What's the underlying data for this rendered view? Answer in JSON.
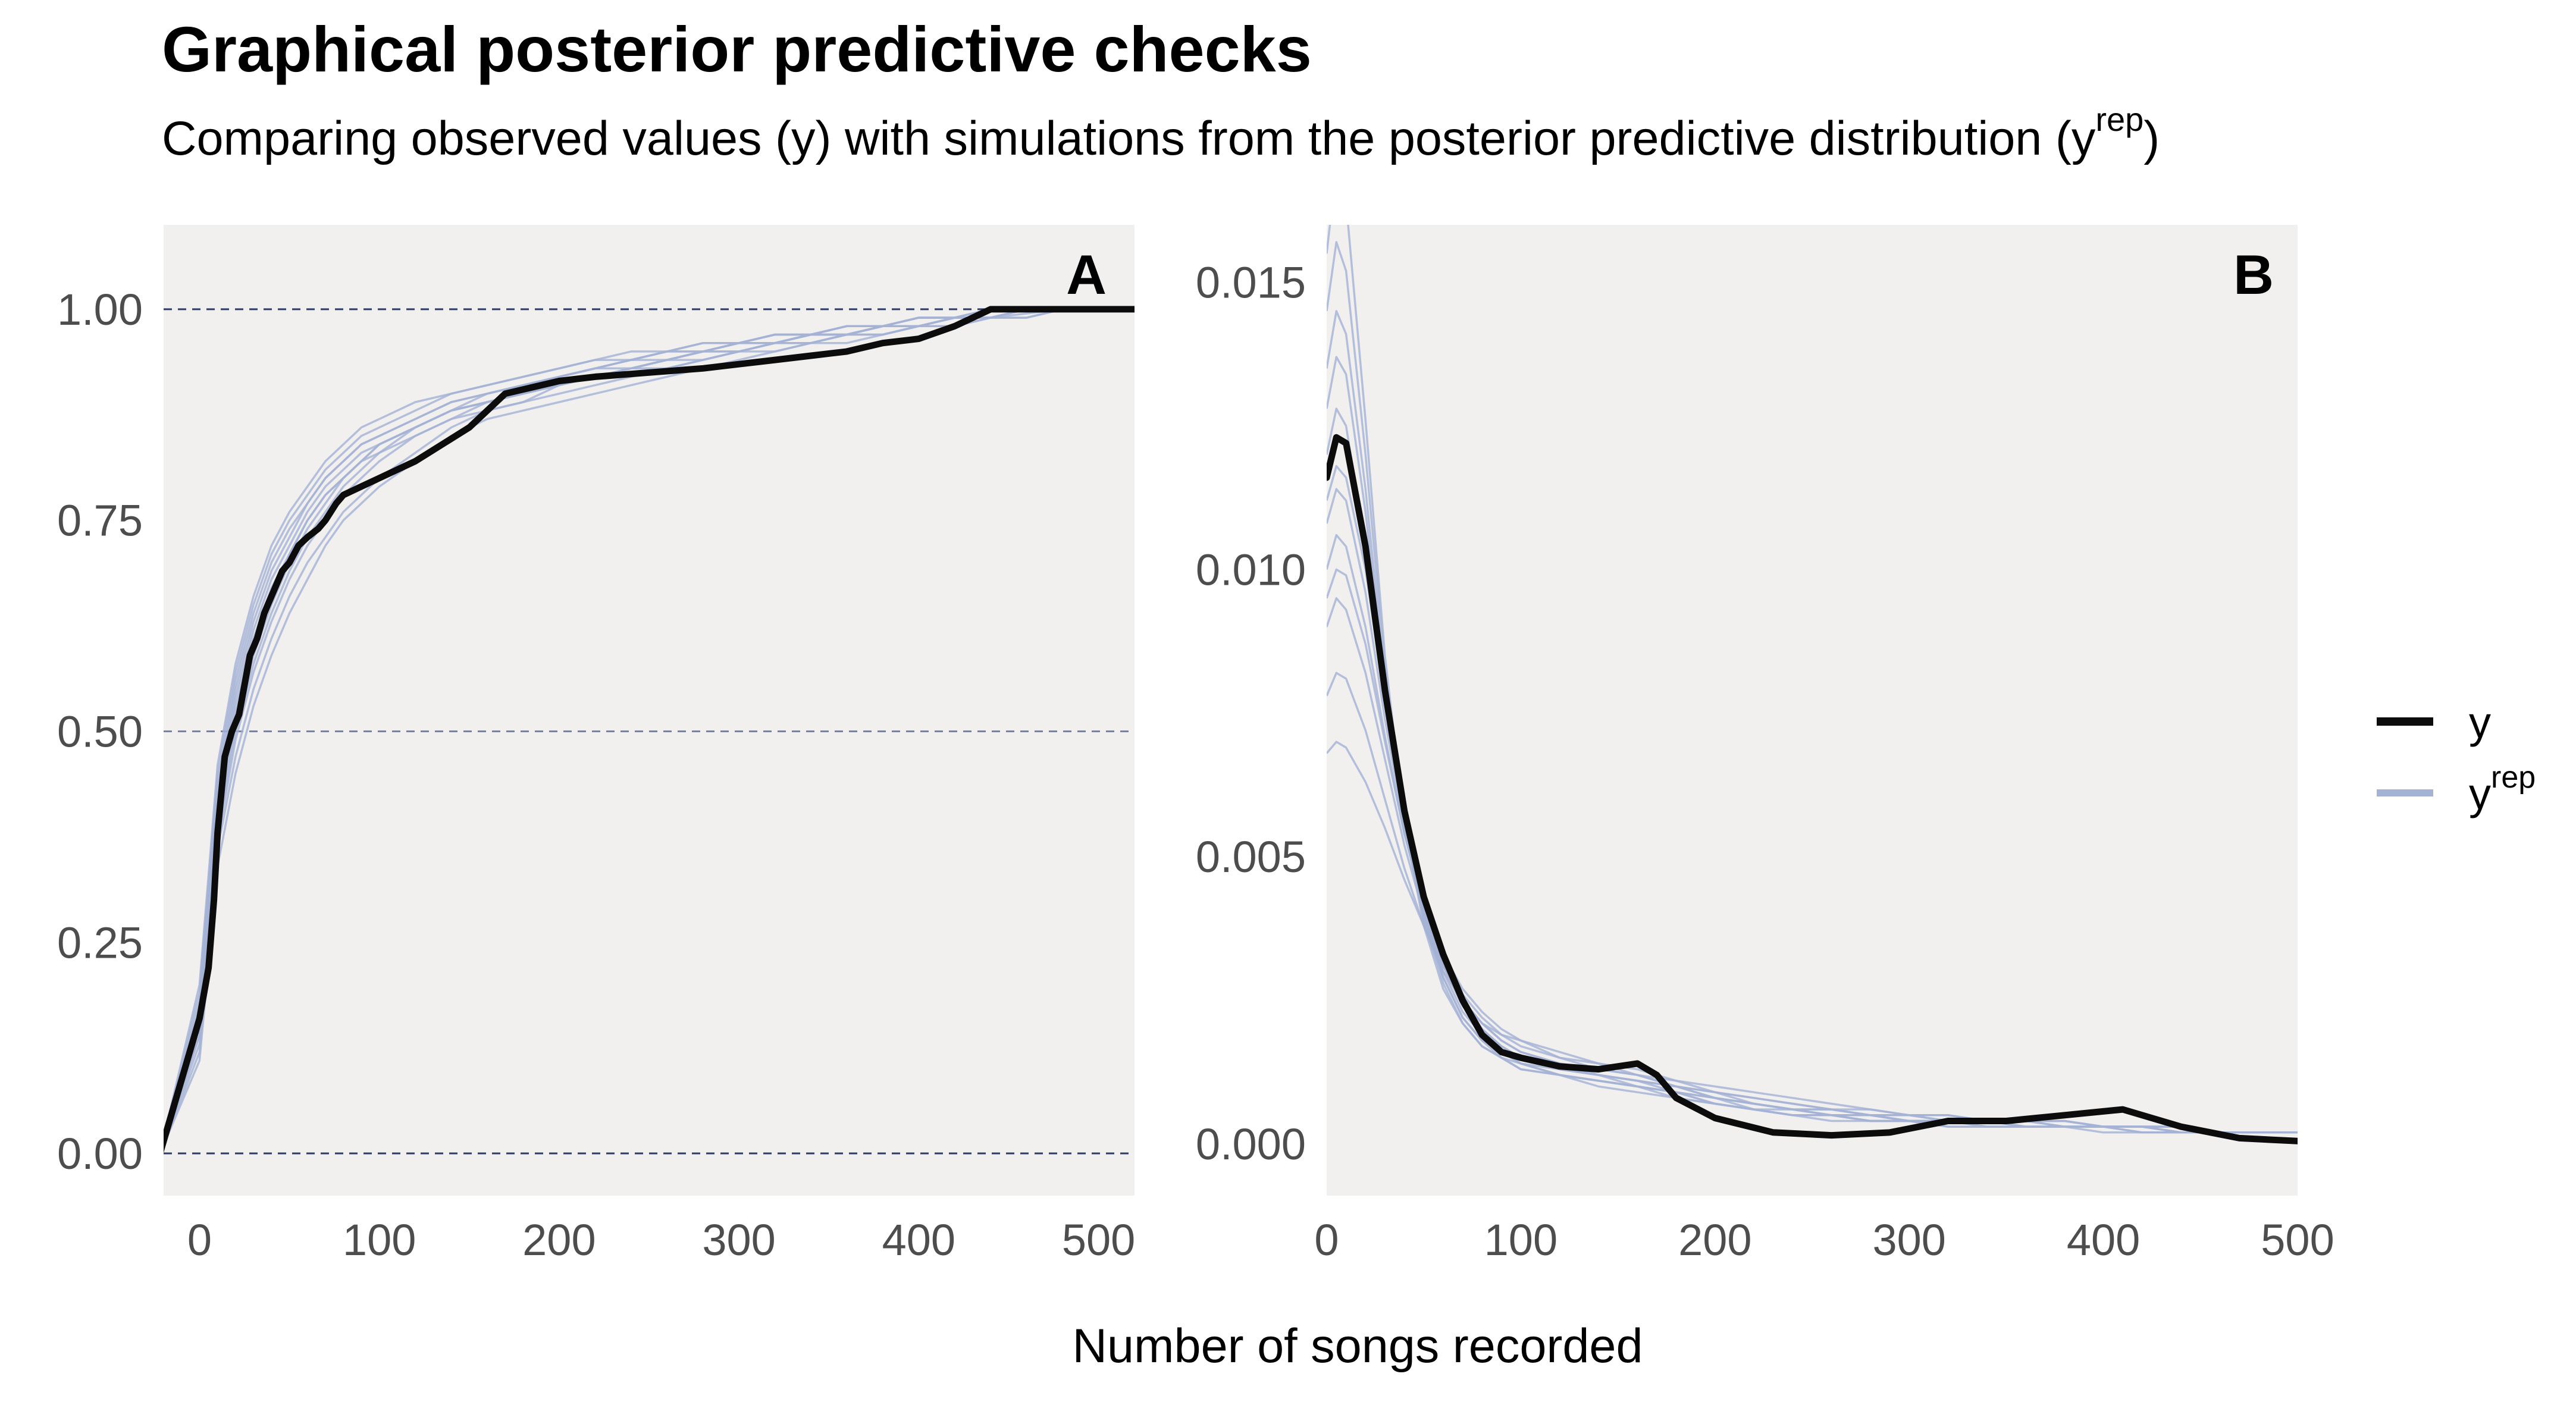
{
  "title": "Graphical posterior predictive checks",
  "subtitle": "Comparing observed values (y) with simulations from the posterior predictive distribution (y",
  "subtitle_sup": "rep",
  "subtitle_end": ")",
  "xlabel": "Number of songs recorded",
  "legend": {
    "items": [
      {
        "label": "y",
        "sup": "",
        "color": "#0c0c0c"
      },
      {
        "label": "y",
        "sup": "rep",
        "color": "#a4b2d4"
      }
    ]
  },
  "colors": {
    "panel_bg": "#f1f0ef",
    "y": "#0c0c0c",
    "yrep": "#a4b2d4",
    "refline": "#1b2a55"
  },
  "chart_data": [
    {
      "panel_label": "A",
      "type": "line",
      "subtype": "ecdf",
      "xlim": [
        -20,
        520
      ],
      "ylim": [
        -0.05,
        1.1
      ],
      "xticks": [
        0,
        100,
        200,
        300,
        400,
        500
      ],
      "xtick_labels": [
        "0",
        "100",
        "200",
        "300",
        "400",
        "500"
      ],
      "yticks": [
        0.0,
        0.25,
        0.5,
        0.75,
        1.0
      ],
      "ytick_labels": [
        "0.00",
        "0.25",
        "0.50",
        "0.75",
        "1.00"
      ],
      "reference_lines": [
        0.0,
        0.5,
        1.0
      ],
      "grid": false,
      "series": [
        {
          "name": "y",
          "role": "y",
          "x": [
            -22,
            0,
            5,
            8,
            10,
            14,
            18,
            22,
            28,
            32,
            36,
            40,
            46,
            50,
            55,
            60,
            66,
            70,
            76,
            80,
            90,
            100,
            110,
            120,
            135,
            150,
            160,
            170,
            180,
            200,
            220,
            250,
            280,
            300,
            320,
            340,
            360,
            380,
            400,
            420,
            430,
            440,
            460,
            480,
            500,
            520
          ],
          "y": [
            0.0,
            0.16,
            0.22,
            0.3,
            0.38,
            0.47,
            0.5,
            0.52,
            0.59,
            0.61,
            0.64,
            0.66,
            0.69,
            0.7,
            0.72,
            0.73,
            0.74,
            0.75,
            0.77,
            0.78,
            0.79,
            0.8,
            0.81,
            0.82,
            0.84,
            0.86,
            0.88,
            0.9,
            0.905,
            0.915,
            0.92,
            0.925,
            0.93,
            0.935,
            0.94,
            0.945,
            0.95,
            0.96,
            0.965,
            0.98,
            0.99,
            1.0,
            1.0,
            1.0,
            1.0,
            1.0
          ]
        }
      ],
      "yrep_x": [
        -22,
        0,
        10,
        20,
        30,
        40,
        50,
        60,
        70,
        80,
        90,
        100,
        120,
        140,
        160,
        180,
        200,
        220,
        240,
        260,
        280,
        300,
        320,
        340,
        360,
        380,
        400,
        420,
        440,
        460,
        480,
        500
      ],
      "yrep_series": [
        [
          0.0,
          0.15,
          0.4,
          0.52,
          0.6,
          0.66,
          0.71,
          0.75,
          0.78,
          0.8,
          0.82,
          0.84,
          0.86,
          0.88,
          0.89,
          0.9,
          0.91,
          0.92,
          0.93,
          0.94,
          0.94,
          0.95,
          0.96,
          0.96,
          0.97,
          0.97,
          0.98,
          0.99,
          0.99,
          0.995,
          1.0,
          1.0
        ],
        [
          0.0,
          0.18,
          0.44,
          0.56,
          0.64,
          0.7,
          0.74,
          0.77,
          0.8,
          0.82,
          0.84,
          0.85,
          0.87,
          0.89,
          0.9,
          0.91,
          0.92,
          0.93,
          0.94,
          0.95,
          0.95,
          0.96,
          0.96,
          0.97,
          0.97,
          0.98,
          0.98,
          0.99,
          0.99,
          1.0,
          1.0,
          1.0
        ],
        [
          0.0,
          0.12,
          0.36,
          0.47,
          0.55,
          0.61,
          0.66,
          0.7,
          0.73,
          0.76,
          0.78,
          0.8,
          0.83,
          0.86,
          0.88,
          0.89,
          0.9,
          0.91,
          0.92,
          0.93,
          0.94,
          0.95,
          0.95,
          0.96,
          0.97,
          0.97,
          0.98,
          0.98,
          0.99,
          0.99,
          1.0,
          1.0
        ],
        [
          0.0,
          0.2,
          0.46,
          0.58,
          0.66,
          0.72,
          0.76,
          0.79,
          0.82,
          0.84,
          0.86,
          0.87,
          0.89,
          0.9,
          0.91,
          0.92,
          0.93,
          0.94,
          0.95,
          0.95,
          0.96,
          0.96,
          0.97,
          0.97,
          0.98,
          0.98,
          0.99,
          0.99,
          1.0,
          1.0,
          1.0,
          1.0
        ],
        [
          0.0,
          0.14,
          0.38,
          0.5,
          0.58,
          0.64,
          0.69,
          0.73,
          0.76,
          0.79,
          0.81,
          0.83,
          0.85,
          0.87,
          0.89,
          0.9,
          0.91,
          0.92,
          0.93,
          0.94,
          0.95,
          0.95,
          0.96,
          0.97,
          0.97,
          0.98,
          0.98,
          0.99,
          0.99,
          1.0,
          1.0,
          1.0
        ],
        [
          0.0,
          0.16,
          0.42,
          0.54,
          0.62,
          0.68,
          0.72,
          0.76,
          0.79,
          0.81,
          0.83,
          0.84,
          0.86,
          0.88,
          0.9,
          0.91,
          0.92,
          0.93,
          0.94,
          0.94,
          0.95,
          0.96,
          0.96,
          0.97,
          0.97,
          0.98,
          0.99,
          0.99,
          0.99,
          1.0,
          1.0,
          1.0
        ],
        [
          0.0,
          0.11,
          0.34,
          0.45,
          0.53,
          0.59,
          0.64,
          0.68,
          0.72,
          0.75,
          0.77,
          0.79,
          0.82,
          0.85,
          0.87,
          0.88,
          0.89,
          0.9,
          0.91,
          0.92,
          0.93,
          0.94,
          0.95,
          0.96,
          0.96,
          0.97,
          0.98,
          0.98,
          0.99,
          0.99,
          1.0,
          1.0
        ],
        [
          0.0,
          0.19,
          0.45,
          0.57,
          0.65,
          0.71,
          0.75,
          0.78,
          0.81,
          0.83,
          0.85,
          0.86,
          0.88,
          0.9,
          0.91,
          0.92,
          0.93,
          0.94,
          0.94,
          0.95,
          0.96,
          0.96,
          0.97,
          0.97,
          0.98,
          0.98,
          0.99,
          0.99,
          1.0,
          1.0,
          1.0,
          1.0
        ],
        [
          0.0,
          0.13,
          0.37,
          0.49,
          0.57,
          0.63,
          0.68,
          0.72,
          0.75,
          0.78,
          0.8,
          0.82,
          0.85,
          0.87,
          0.88,
          0.89,
          0.91,
          0.92,
          0.93,
          0.93,
          0.94,
          0.95,
          0.96,
          0.96,
          0.97,
          0.98,
          0.98,
          0.99,
          0.99,
          1.0,
          1.0,
          1.0
        ],
        [
          0.0,
          0.17,
          0.43,
          0.55,
          0.63,
          0.69,
          0.73,
          0.77,
          0.8,
          0.82,
          0.84,
          0.85,
          0.87,
          0.89,
          0.9,
          0.91,
          0.92,
          0.93,
          0.94,
          0.95,
          0.95,
          0.96,
          0.97,
          0.97,
          0.98,
          0.98,
          0.99,
          0.99,
          1.0,
          1.0,
          1.0,
          1.0
        ],
        [
          0.0,
          0.15,
          0.39,
          0.51,
          0.59,
          0.65,
          0.7,
          0.74,
          0.77,
          0.8,
          0.82,
          0.83,
          0.86,
          0.88,
          0.89,
          0.9,
          0.91,
          0.92,
          0.93,
          0.94,
          0.95,
          0.95,
          0.96,
          0.97,
          0.97,
          0.98,
          0.98,
          0.99,
          1.0,
          1.0,
          1.0,
          1.0
        ],
        [
          0.0,
          0.14,
          0.41,
          0.53,
          0.61,
          0.67,
          0.71,
          0.75,
          0.78,
          0.8,
          0.82,
          0.84,
          0.86,
          0.88,
          0.89,
          0.9,
          0.92,
          0.93,
          0.93,
          0.94,
          0.95,
          0.96,
          0.96,
          0.97,
          0.98,
          0.98,
          0.99,
          0.99,
          0.99,
          1.0,
          1.0,
          1.0
        ]
      ]
    },
    {
      "panel_label": "B",
      "type": "line",
      "subtype": "density",
      "xlim": [
        0,
        500
      ],
      "ylim": [
        -0.0009,
        0.016
      ],
      "xticks": [
        0,
        100,
        200,
        300,
        400,
        500
      ],
      "xtick_labels": [
        "0",
        "100",
        "200",
        "300",
        "400",
        "500"
      ],
      "yticks": [
        0.0,
        0.005,
        0.01,
        0.015
      ],
      "ytick_labels": [
        "0.000",
        "0.005",
        "0.010",
        "0.015"
      ],
      "grid": false,
      "series": [
        {
          "name": "y",
          "role": "y",
          "x": [
            0,
            5,
            10,
            20,
            30,
            40,
            50,
            60,
            70,
            80,
            90,
            100,
            120,
            140,
            160,
            170,
            180,
            200,
            230,
            260,
            290,
            320,
            350,
            380,
            410,
            440,
            470,
            500
          ],
          "y": [
            0.0116,
            0.0123,
            0.0122,
            0.0104,
            0.0079,
            0.0058,
            0.0043,
            0.0033,
            0.0025,
            0.0019,
            0.0016,
            0.0015,
            0.00135,
            0.0013,
            0.0014,
            0.0012,
            0.0008,
            0.00045,
            0.0002,
            0.00015,
            0.0002,
            0.0004,
            0.0004,
            0.0005,
            0.0006,
            0.0003,
            0.0001,
            5e-05
          ]
        }
      ],
      "yrep_x": [
        0,
        5,
        10,
        20,
        30,
        40,
        50,
        60,
        70,
        80,
        90,
        100,
        120,
        140,
        160,
        180,
        200,
        220,
        240,
        260,
        280,
        300,
        320,
        340,
        360,
        380,
        400,
        420,
        440,
        460,
        480,
        500
      ],
      "yrep_series": [
        [
          0.0068,
          0.007,
          0.0069,
          0.0063,
          0.0055,
          0.0046,
          0.0038,
          0.0031,
          0.0026,
          0.0022,
          0.0019,
          0.0017,
          0.0015,
          0.0014,
          0.0013,
          0.0011,
          0.0009,
          0.0008,
          0.0007,
          0.0006,
          0.0006,
          0.0005,
          0.0005,
          0.0004,
          0.0004,
          0.0004,
          0.0003,
          0.0003,
          0.0003,
          0.0002,
          0.0002,
          0.0002
        ],
        [
          0.0078,
          0.0082,
          0.0081,
          0.0072,
          0.006,
          0.0048,
          0.0038,
          0.003,
          0.0025,
          0.0021,
          0.0018,
          0.0016,
          0.0014,
          0.0013,
          0.0012,
          0.001,
          0.0009,
          0.0008,
          0.0007,
          0.0006,
          0.0005,
          0.0005,
          0.0005,
          0.0004,
          0.0004,
          0.0004,
          0.0003,
          0.0003,
          0.0003,
          0.0002,
          0.0002,
          0.0002
        ],
        [
          0.009,
          0.0095,
          0.0093,
          0.0082,
          0.0067,
          0.0052,
          0.004,
          0.0031,
          0.0025,
          0.0021,
          0.0018,
          0.0016,
          0.0014,
          0.0012,
          0.0011,
          0.001,
          0.0009,
          0.0007,
          0.0006,
          0.0006,
          0.0005,
          0.0005,
          0.0004,
          0.0004,
          0.0004,
          0.0003,
          0.0003,
          0.0003,
          0.0003,
          0.0002,
          0.0002,
          0.0002
        ],
        [
          0.01,
          0.0106,
          0.0104,
          0.009,
          0.0071,
          0.0054,
          0.0041,
          0.0032,
          0.0025,
          0.002,
          0.0017,
          0.0015,
          0.0013,
          0.0012,
          0.0011,
          0.001,
          0.0008,
          0.0007,
          0.0006,
          0.0005,
          0.0005,
          0.0004,
          0.0004,
          0.0004,
          0.0003,
          0.0003,
          0.0003,
          0.0003,
          0.0002,
          0.0002,
          0.0002,
          0.0002
        ],
        [
          0.0108,
          0.0114,
          0.0112,
          0.0096,
          0.0074,
          0.0055,
          0.0041,
          0.0031,
          0.0024,
          0.002,
          0.0017,
          0.0015,
          0.0013,
          0.0012,
          0.0011,
          0.0009,
          0.0008,
          0.0007,
          0.0006,
          0.0005,
          0.0005,
          0.0004,
          0.0004,
          0.0004,
          0.0003,
          0.0003,
          0.0003,
          0.0003,
          0.0002,
          0.0002,
          0.0002,
          0.0002
        ],
        [
          0.012,
          0.0128,
          0.0125,
          0.0104,
          0.0078,
          0.0056,
          0.004,
          0.003,
          0.0023,
          0.0019,
          0.0016,
          0.0014,
          0.0013,
          0.0012,
          0.001,
          0.0009,
          0.0008,
          0.0006,
          0.0006,
          0.0005,
          0.0005,
          0.0004,
          0.0004,
          0.0004,
          0.0003,
          0.0003,
          0.0003,
          0.0003,
          0.0002,
          0.0002,
          0.0002,
          0.0002
        ],
        [
          0.0128,
          0.0137,
          0.0134,
          0.011,
          0.008,
          0.0056,
          0.004,
          0.0029,
          0.0022,
          0.0018,
          0.0016,
          0.0014,
          0.0012,
          0.0011,
          0.001,
          0.0009,
          0.0007,
          0.0006,
          0.0005,
          0.0005,
          0.0004,
          0.0004,
          0.0004,
          0.0003,
          0.0003,
          0.0003,
          0.0003,
          0.0003,
          0.0002,
          0.0002,
          0.0002,
          0.0002
        ],
        [
          0.0135,
          0.0145,
          0.0141,
          0.0114,
          0.0081,
          0.0056,
          0.0039,
          0.0029,
          0.0022,
          0.0018,
          0.0015,
          0.0014,
          0.0012,
          0.0011,
          0.001,
          0.0009,
          0.0007,
          0.0006,
          0.0005,
          0.0005,
          0.0004,
          0.0004,
          0.0004,
          0.0003,
          0.0003,
          0.0003,
          0.0003,
          0.0002,
          0.0002,
          0.0002,
          0.0002,
          0.0002
        ],
        [
          0.0145,
          0.0157,
          0.0152,
          0.012,
          0.0083,
          0.0056,
          0.0039,
          0.0028,
          0.0021,
          0.0017,
          0.0015,
          0.0013,
          0.0012,
          0.0011,
          0.001,
          0.0008,
          0.0007,
          0.0006,
          0.0005,
          0.0005,
          0.0004,
          0.0004,
          0.0003,
          0.0003,
          0.0003,
          0.0003,
          0.0003,
          0.0002,
          0.0002,
          0.0002,
          0.0002,
          0.0002
        ],
        [
          0.0155,
          0.017,
          0.0164,
          0.0126,
          0.0085,
          0.0056,
          0.0038,
          0.0027,
          0.0021,
          0.0017,
          0.0015,
          0.0013,
          0.0012,
          0.001,
          0.0009,
          0.0008,
          0.0007,
          0.0006,
          0.0005,
          0.0004,
          0.0004,
          0.0004,
          0.0003,
          0.0003,
          0.0003,
          0.0003,
          0.0002,
          0.0002,
          0.0002,
          0.0002,
          0.0002,
          0.0002
        ],
        [
          0.0112,
          0.0118,
          0.0116,
          0.01,
          0.0077,
          0.0057,
          0.0042,
          0.0032,
          0.0025,
          0.0021,
          0.0019,
          0.0018,
          0.0016,
          0.0014,
          0.0012,
          0.001,
          0.0008,
          0.0007,
          0.0006,
          0.0006,
          0.0005,
          0.0005,
          0.0004,
          0.0004,
          0.0004,
          0.0003,
          0.0003,
          0.0003,
          0.0003,
          0.0002,
          0.0002,
          0.0002
        ],
        [
          0.0095,
          0.01,
          0.0099,
          0.0087,
          0.007,
          0.0054,
          0.0042,
          0.0033,
          0.0027,
          0.0023,
          0.002,
          0.0018,
          0.0015,
          0.0013,
          0.0012,
          0.0011,
          0.001,
          0.0009,
          0.0008,
          0.0007,
          0.0006,
          0.0005,
          0.0005,
          0.0004,
          0.0004,
          0.0004,
          0.0003,
          0.0003,
          0.0003,
          0.0002,
          0.0002,
          0.0002
        ]
      ]
    }
  ]
}
